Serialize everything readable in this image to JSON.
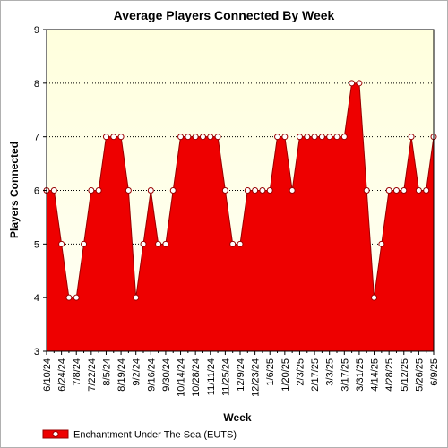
{
  "chart_data": {
    "type": "area",
    "title": "Average Players Connected By Week",
    "xlabel": "Week",
    "ylabel": "Players Connected",
    "ylim": [
      3,
      9
    ],
    "yticks": [
      3,
      4,
      5,
      6,
      7,
      8,
      9
    ],
    "grid": "horizontal",
    "legend": "bottom-left",
    "colors": {
      "plot_bg_top": "#ffffdd",
      "plot_bg_bottom": "#fffff6",
      "area": "#ee0000",
      "line": "#990000",
      "marker_fill": "#ffffff",
      "grid": "#000000"
    },
    "x": [
      "6/10/24",
      "6/17/24",
      "6/24/24",
      "7/1/24",
      "7/8/24",
      "7/15/24",
      "7/22/24",
      "7/29/24",
      "8/5/24",
      "8/12/24",
      "8/19/24",
      "8/26/24",
      "9/2/24",
      "9/9/24",
      "9/16/24",
      "9/23/24",
      "9/30/24",
      "10/7/24",
      "10/14/24",
      "10/21/24",
      "10/28/24",
      "11/4/24",
      "11/11/24",
      "11/18/24",
      "11/25/24",
      "12/2/24",
      "12/9/24",
      "12/16/24",
      "12/23/24",
      "12/30/24",
      "1/6/25",
      "1/13/25",
      "1/20/25",
      "1/27/25",
      "2/3/25",
      "2/10/25",
      "2/17/25",
      "2/24/25",
      "3/3/25",
      "3/10/25",
      "3/17/25",
      "3/24/25",
      "3/31/25",
      "4/7/25",
      "4/14/25",
      "4/21/25",
      "4/28/25",
      "5/5/25",
      "5/12/25",
      "5/19/25",
      "5/26/25",
      "6/2/25",
      "6/9/25"
    ],
    "x_tick_labels": [
      "6/10/24",
      "6/24/24",
      "7/8/24",
      "7/22/24",
      "8/5/24",
      "8/19/24",
      "9/2/24",
      "9/16/24",
      "9/30/24",
      "10/14/24",
      "10/28/24",
      "11/11/24",
      "11/25/24",
      "12/9/24",
      "12/23/24",
      "1/6/25",
      "1/20/25",
      "2/3/25",
      "2/17/25",
      "3/3/25",
      "3/17/25",
      "3/31/25",
      "4/14/25",
      "4/28/25",
      "5/12/25",
      "5/26/25",
      "6/9/25"
    ],
    "series": [
      {
        "name": "Enchantment Under The Sea (EUTS)",
        "values": [
          6,
          6,
          5,
          4,
          4,
          5,
          6,
          6,
          7,
          7,
          7,
          6,
          4,
          5,
          6,
          5,
          5,
          6,
          7,
          7,
          7,
          7,
          7,
          7,
          6,
          5,
          5,
          6,
          6,
          6,
          6,
          7,
          7,
          6,
          7,
          7,
          7,
          7,
          7,
          7,
          7,
          8,
          8,
          6,
          4,
          5,
          6,
          6,
          6,
          7,
          6,
          6,
          7
        ]
      }
    ]
  }
}
